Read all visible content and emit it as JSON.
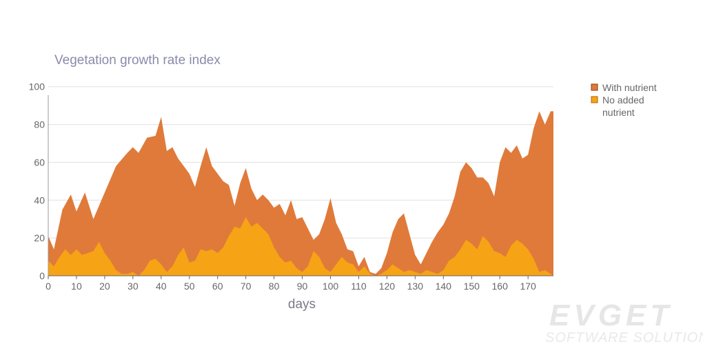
{
  "chart_data": {
    "type": "area",
    "title": "Vegetation growth rate index",
    "xlabel": "days",
    "ylabel": "",
    "xlim": [
      0,
      179
    ],
    "ylim": [
      0,
      105
    ],
    "x_ticks": [
      0,
      10,
      20,
      30,
      40,
      50,
      60,
      70,
      80,
      90,
      100,
      110,
      120,
      130,
      140,
      150,
      160,
      170
    ],
    "y_ticks": [
      0,
      20,
      40,
      60,
      80,
      100
    ],
    "grid": true,
    "legend_position": "right",
    "series": [
      {
        "name": "With nutrient",
        "color": "#e07a3a",
        "border": "#8a3a12",
        "points": [
          [
            0,
            21
          ],
          [
            2,
            14
          ],
          [
            5,
            35
          ],
          [
            8,
            43
          ],
          [
            10,
            34
          ],
          [
            13,
            44
          ],
          [
            16,
            30
          ],
          [
            20,
            44
          ],
          [
            24,
            58
          ],
          [
            28,
            65
          ],
          [
            30,
            68
          ],
          [
            32,
            65
          ],
          [
            35,
            73
          ],
          [
            38,
            74
          ],
          [
            40,
            84
          ],
          [
            42,
            66
          ],
          [
            44,
            68
          ],
          [
            46,
            62
          ],
          [
            48,
            58
          ],
          [
            50,
            54
          ],
          [
            52,
            47
          ],
          [
            54,
            58
          ],
          [
            56,
            68
          ],
          [
            58,
            58
          ],
          [
            60,
            54
          ],
          [
            62,
            50
          ],
          [
            64,
            48
          ],
          [
            66,
            37
          ],
          [
            68,
            49
          ],
          [
            70,
            57
          ],
          [
            72,
            46
          ],
          [
            74,
            40
          ],
          [
            76,
            43
          ],
          [
            78,
            40
          ],
          [
            80,
            36
          ],
          [
            82,
            38
          ],
          [
            84,
            32
          ],
          [
            86,
            40
          ],
          [
            88,
            30
          ],
          [
            90,
            31
          ],
          [
            92,
            25
          ],
          [
            94,
            19
          ],
          [
            96,
            22
          ],
          [
            98,
            30
          ],
          [
            100,
            41
          ],
          [
            102,
            28
          ],
          [
            104,
            22
          ],
          [
            106,
            14
          ],
          [
            108,
            13
          ],
          [
            110,
            5
          ],
          [
            112,
            10
          ],
          [
            114,
            2
          ],
          [
            116,
            1
          ],
          [
            118,
            4
          ],
          [
            120,
            12
          ],
          [
            122,
            23
          ],
          [
            124,
            30
          ],
          [
            126,
            33
          ],
          [
            128,
            22
          ],
          [
            130,
            11
          ],
          [
            132,
            6
          ],
          [
            134,
            12
          ],
          [
            136,
            18
          ],
          [
            138,
            23
          ],
          [
            140,
            27
          ],
          [
            142,
            33
          ],
          [
            144,
            42
          ],
          [
            146,
            55
          ],
          [
            148,
            60
          ],
          [
            150,
            57
          ],
          [
            152,
            52
          ],
          [
            154,
            52
          ],
          [
            156,
            49
          ],
          [
            158,
            42
          ],
          [
            160,
            60
          ],
          [
            162,
            68
          ],
          [
            164,
            65
          ],
          [
            166,
            69
          ],
          [
            168,
            62
          ],
          [
            170,
            64
          ],
          [
            172,
            78
          ],
          [
            174,
            87
          ],
          [
            176,
            80
          ],
          [
            178,
            87
          ],
          [
            179,
            87
          ]
        ]
      },
      {
        "name": "No added nutrient",
        "color": "#f6a316",
        "border": "#a86a00",
        "points": [
          [
            0,
            8
          ],
          [
            2,
            5
          ],
          [
            4,
            10
          ],
          [
            6,
            14
          ],
          [
            8,
            11
          ],
          [
            10,
            14
          ],
          [
            12,
            11
          ],
          [
            14,
            12
          ],
          [
            16,
            13
          ],
          [
            18,
            18
          ],
          [
            20,
            12
          ],
          [
            22,
            8
          ],
          [
            24,
            3
          ],
          [
            26,
            1
          ],
          [
            28,
            1
          ],
          [
            30,
            2
          ],
          [
            32,
            0
          ],
          [
            34,
            3
          ],
          [
            36,
            8
          ],
          [
            38,
            9
          ],
          [
            40,
            6
          ],
          [
            42,
            2
          ],
          [
            44,
            5
          ],
          [
            46,
            11
          ],
          [
            48,
            15
          ],
          [
            50,
            7
          ],
          [
            52,
            8
          ],
          [
            54,
            14
          ],
          [
            56,
            13
          ],
          [
            58,
            14
          ],
          [
            60,
            12
          ],
          [
            62,
            15
          ],
          [
            64,
            21
          ],
          [
            66,
            26
          ],
          [
            68,
            25
          ],
          [
            70,
            31
          ],
          [
            72,
            26
          ],
          [
            74,
            28
          ],
          [
            76,
            25
          ],
          [
            78,
            22
          ],
          [
            80,
            15
          ],
          [
            82,
            10
          ],
          [
            84,
            7
          ],
          [
            86,
            8
          ],
          [
            88,
            4
          ],
          [
            90,
            2
          ],
          [
            92,
            5
          ],
          [
            94,
            13
          ],
          [
            96,
            10
          ],
          [
            98,
            4
          ],
          [
            100,
            2
          ],
          [
            102,
            6
          ],
          [
            104,
            10
          ],
          [
            106,
            7
          ],
          [
            108,
            6
          ],
          [
            110,
            2
          ],
          [
            112,
            5
          ],
          [
            114,
            1
          ],
          [
            116,
            0
          ],
          [
            118,
            1
          ],
          [
            120,
            3
          ],
          [
            122,
            6
          ],
          [
            124,
            4
          ],
          [
            126,
            2
          ],
          [
            128,
            3
          ],
          [
            130,
            2
          ],
          [
            132,
            1
          ],
          [
            134,
            3
          ],
          [
            136,
            2
          ],
          [
            138,
            1
          ],
          [
            140,
            3
          ],
          [
            142,
            8
          ],
          [
            144,
            10
          ],
          [
            146,
            14
          ],
          [
            148,
            19
          ],
          [
            150,
            17
          ],
          [
            152,
            14
          ],
          [
            154,
            21
          ],
          [
            156,
            18
          ],
          [
            158,
            13
          ],
          [
            160,
            12
          ],
          [
            162,
            10
          ],
          [
            164,
            16
          ],
          [
            166,
            19
          ],
          [
            168,
            17
          ],
          [
            170,
            14
          ],
          [
            172,
            9
          ],
          [
            174,
            2
          ],
          [
            176,
            3
          ],
          [
            178,
            1
          ],
          [
            179,
            0
          ]
        ]
      }
    ]
  },
  "watermark": {
    "brand": "EVGET",
    "tagline": "SOFTWARE SOLUTIONS"
  }
}
